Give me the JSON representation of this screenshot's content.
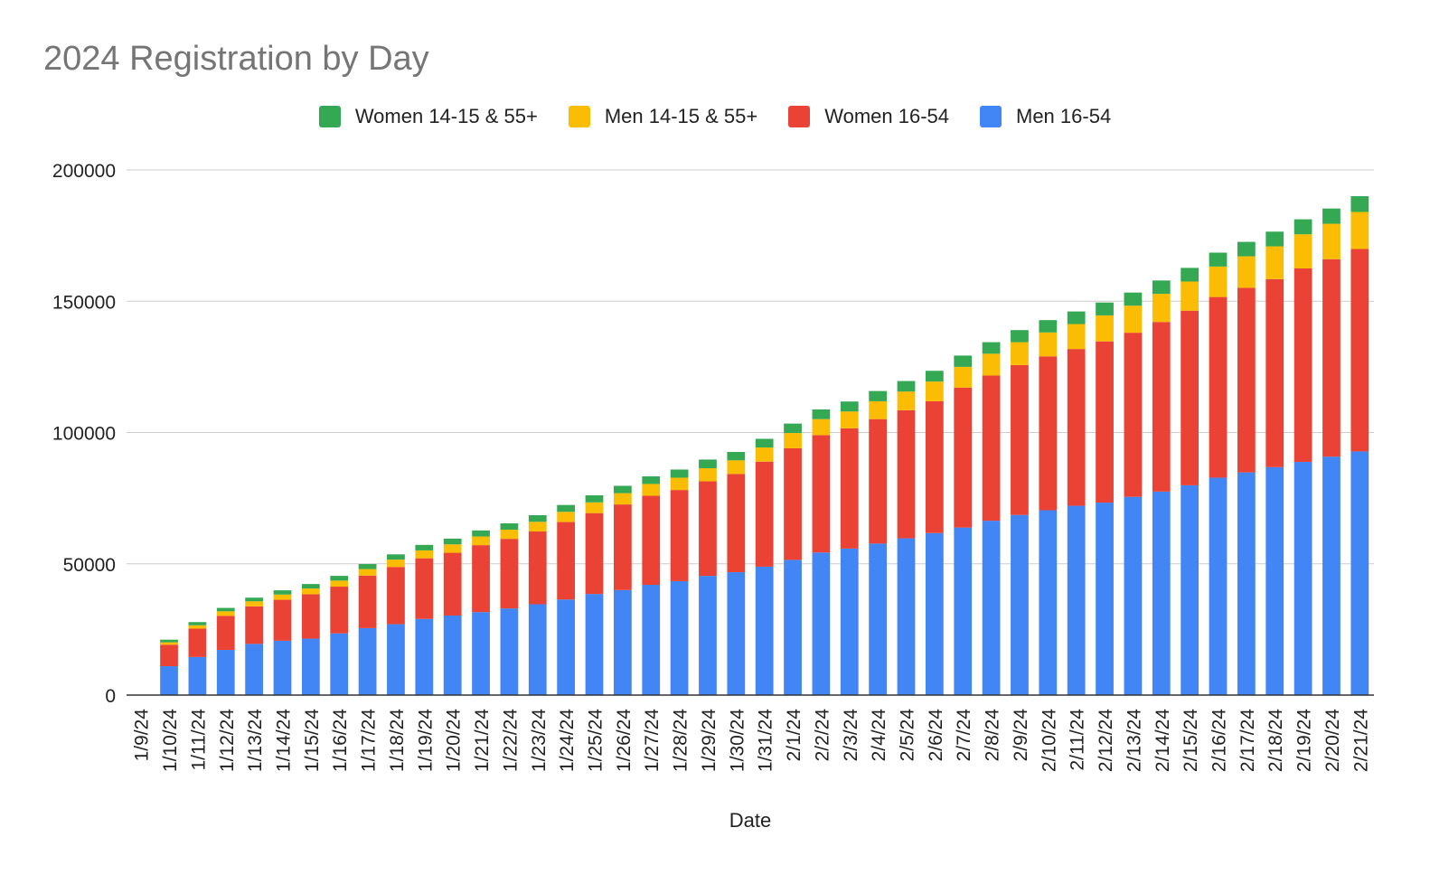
{
  "chart_data": {
    "type": "bar",
    "stacked": true,
    "title": "2024 Registration by Day",
    "xlabel": "Date",
    "ylabel": "",
    "ylim": [
      0,
      200000
    ],
    "yticks": [
      "0",
      "50000",
      "100000",
      "150000",
      "200000"
    ],
    "grid": true,
    "legend_position": "top",
    "categories": [
      "1/9/24",
      "1/10/24",
      "1/11/24",
      "1/12/24",
      "1/13/24",
      "1/14/24",
      "1/15/24",
      "1/16/24",
      "1/17/24",
      "1/18/24",
      "1/19/24",
      "1/20/24",
      "1/21/24",
      "1/22/24",
      "1/23/24",
      "1/24/24",
      "1/25/24",
      "1/26/24",
      "1/27/24",
      "1/28/24",
      "1/29/24",
      "1/30/24",
      "1/31/24",
      "2/1/24",
      "2/2/24",
      "2/3/24",
      "2/4/24",
      "2/5/24",
      "2/6/24",
      "2/7/24",
      "2/8/24",
      "2/9/24",
      "2/10/24",
      "2/11/24",
      "2/12/24",
      "2/13/24",
      "2/14/24",
      "2/15/24",
      "2/16/24",
      "2/17/24",
      "2/18/24",
      "2/19/24",
      "2/20/24",
      "2/21/24"
    ],
    "series": [
      {
        "name": "Men 16-54",
        "color": "#4285F4",
        "values": [
          0,
          11000,
          14500,
          17200,
          19500,
          20700,
          21500,
          23500,
          25500,
          27000,
          29000,
          30300,
          31600,
          33000,
          34600,
          36400,
          38500,
          40000,
          42000,
          43400,
          45400,
          46800,
          48900,
          51500,
          54300,
          55800,
          57700,
          59700,
          61700,
          63800,
          66400,
          68600,
          70400,
          72100,
          73300,
          75500,
          77500,
          79900,
          82800,
          84800,
          86800,
          88800,
          90800,
          92800
        ]
      },
      {
        "name": "Women 16-54",
        "color": "#EA4335",
        "values": [
          0,
          8200,
          10800,
          13000,
          14300,
          15600,
          16900,
          17800,
          20000,
          21800,
          23100,
          23900,
          25500,
          26500,
          27700,
          29500,
          30800,
          32600,
          33900,
          34700,
          36000,
          37400,
          40000,
          42500,
          44700,
          45800,
          47400,
          48800,
          50200,
          53300,
          55300,
          57100,
          58600,
          59700,
          61400,
          62500,
          64600,
          66500,
          68800,
          70300,
          71600,
          73700,
          75200,
          77100
        ]
      },
      {
        "name": "Men 14-15 & 55+",
        "color": "#FBBC04",
        "values": [
          0,
          900,
          1300,
          1700,
          1900,
          2000,
          2200,
          2300,
          2500,
          2800,
          3000,
          3200,
          3300,
          3500,
          3700,
          3900,
          4100,
          4300,
          4500,
          4700,
          5000,
          5200,
          5400,
          5800,
          6100,
          6400,
          6800,
          7100,
          7500,
          7900,
          8300,
          8700,
          9100,
          9500,
          9900,
          10300,
          10700,
          11100,
          11600,
          12000,
          12500,
          13000,
          13500,
          14100
        ]
      },
      {
        "name": "Women 14-15 & 55+",
        "color": "#34A853",
        "values": [
          0,
          1000,
          1200,
          1300,
          1400,
          1600,
          1700,
          1800,
          1900,
          2000,
          2100,
          2200,
          2300,
          2400,
          2500,
          2600,
          2700,
          2800,
          2900,
          3100,
          3300,
          3200,
          3300,
          3600,
          3700,
          3800,
          3900,
          4000,
          4100,
          4300,
          4400,
          4600,
          4700,
          4800,
          4900,
          5000,
          5100,
          5200,
          5300,
          5500,
          5600,
          5700,
          5800,
          6000
        ]
      }
    ],
    "legend_order": [
      3,
      2,
      1,
      0
    ]
  }
}
